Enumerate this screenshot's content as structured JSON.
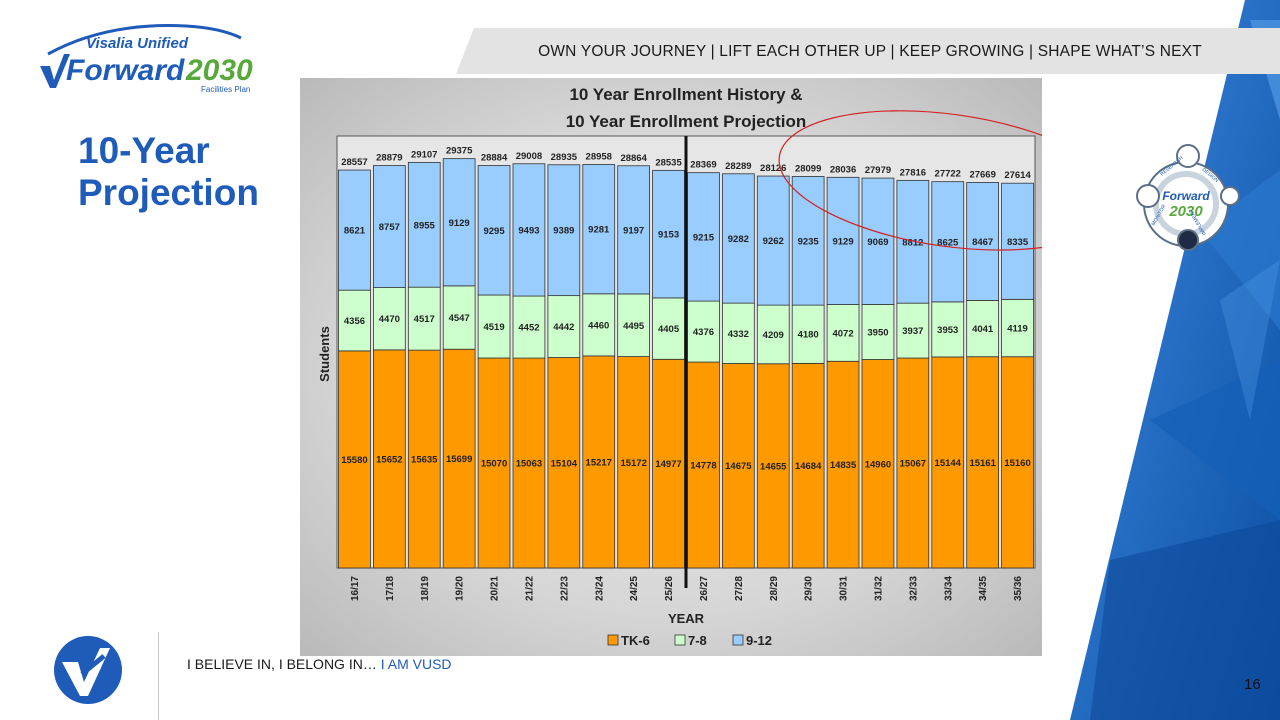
{
  "header": {
    "tagline": "OWN YOUR JOURNEY | LIFT EACH OTHER UP | KEEP GROWING | SHAPE WHAT’S NEXT",
    "logo_top_text": "Visalia Unified",
    "logo_main_text": "Forward",
    "logo_year_text": "2030",
    "logo_sub_text": "Facilities Plan"
  },
  "slide": {
    "title_line1": "10-Year",
    "title_line2": "Projection",
    "page_number": "16"
  },
  "badge": {
    "text_forward": "Forward",
    "text_year": "2030",
    "ring_words": [
      "RESEARCH",
      "DESIGN",
      "MONITOR",
      "IMPLEMENT"
    ]
  },
  "footer": {
    "text": "I BELIEVE IN, I BELONG IN… ",
    "accent": "I AM VUSD"
  },
  "colors": {
    "brand_blue": "#1f5bb8",
    "tk6": "#ff9900",
    "grade78": "#ccffcc",
    "grade912": "#99ccff",
    "highlight_ellipse": "#d42020"
  },
  "chart_data": {
    "type": "bar",
    "stacked": true,
    "title_line1": "10 Year Enrollment History &",
    "title_line2": "10 Year Enrollment Projection",
    "xlabel": "YEAR",
    "ylabel": "Students",
    "categories": [
      "16/17",
      "17/18",
      "18/19",
      "19/20",
      "20/21",
      "21/22",
      "22/23",
      "23/24",
      "24/25",
      "25/26",
      "26/27",
      "27/28",
      "28/29",
      "29/30",
      "30/31",
      "31/32",
      "32/33",
      "33/34",
      "34/35",
      "35/36"
    ],
    "series": [
      {
        "name": "TK-6",
        "color": "#ff9900",
        "values": [
          15580,
          15652,
          15635,
          15699,
          15070,
          15063,
          15104,
          15217,
          15172,
          14977,
          14778,
          14675,
          14655,
          14684,
          14835,
          14960,
          15067,
          15144,
          15161,
          15160
        ]
      },
      {
        "name": "7-8",
        "color": "#ccffcc",
        "values": [
          4356,
          4470,
          4517,
          4547,
          4519,
          4452,
          4442,
          4460,
          4495,
          4405,
          4376,
          4332,
          4209,
          4180,
          4072,
          3950,
          3937,
          3953,
          4041,
          4119
        ]
      },
      {
        "name": "9-12",
        "color": "#99ccff",
        "values": [
          8621,
          8757,
          8955,
          9129,
          9295,
          9493,
          9389,
          9281,
          9197,
          9153,
          9215,
          9282,
          9262,
          9235,
          9129,
          9069,
          8812,
          8625,
          8467,
          8335
        ]
      }
    ],
    "totals": [
      28557,
      28879,
      29107,
      29375,
      28884,
      29008,
      28935,
      28958,
      28864,
      28535,
      28369,
      28289,
      28126,
      28099,
      28036,
      27979,
      27816,
      27722,
      27669,
      27614
    ],
    "ylim": [
      0,
      31000
    ],
    "history_projection_split_after": "25/26",
    "highlighted_range": [
      "29/30",
      "35/36"
    ],
    "legend": [
      "TK-6",
      "7-8",
      "9-12"
    ],
    "legend_position": "bottom"
  }
}
